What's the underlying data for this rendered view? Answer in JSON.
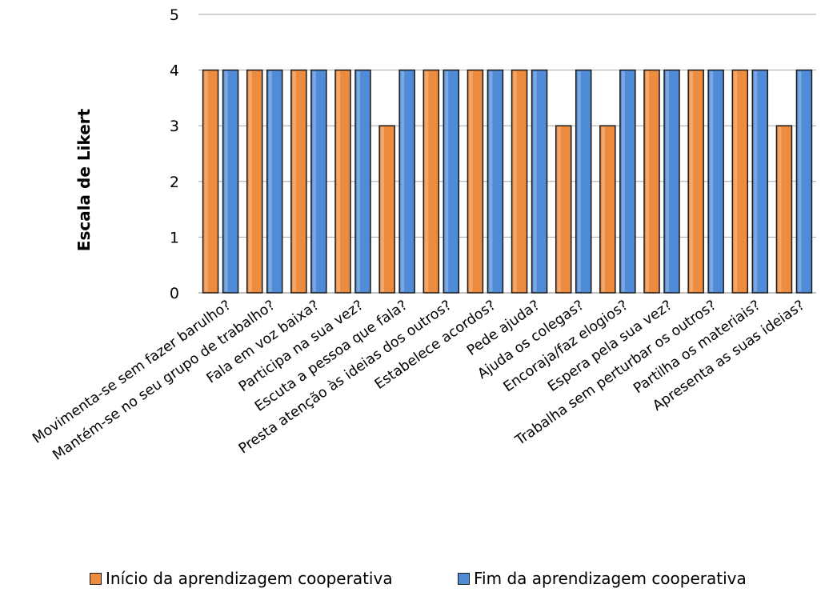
{
  "chart_data": {
    "type": "bar",
    "title": "",
    "xlabel": "",
    "ylabel": "Escala de Likert",
    "ylim": [
      0,
      5
    ],
    "yticks": [
      0,
      1,
      2,
      3,
      4,
      5
    ],
    "grid": "horizontal",
    "legend_position": "bottom",
    "categories": [
      "Movimenta-se sem fazer barulho?",
      "Mantém-se no seu grupo de trabalho?",
      "Fala em voz baixa?",
      "Participa na sua vez?",
      "Escuta a pessoa que fala?",
      "Presta atenção às ideias dos outros?",
      "Estabelece acordos?",
      "Pede ajuda?",
      "Ajuda os colegas?",
      "Encoraja/faz elogios?",
      "Espera pela sua vez?",
      "Trabalha sem perturbar os outros?",
      "Partilha os materiais?",
      "Apresenta as suas ideias?"
    ],
    "series": [
      {
        "name": "Início da aprendizagem cooperativa",
        "color": "#ED8B3F",
        "values": [
          4,
          4,
          4,
          4,
          3,
          4,
          4,
          4,
          3,
          3,
          4,
          4,
          4,
          3
        ]
      },
      {
        "name": "Fim da aprendizagem cooperativa",
        "color": "#4F8BD6",
        "values": [
          4,
          4,
          4,
          4,
          4,
          4,
          4,
          4,
          4,
          4,
          4,
          4,
          4,
          4
        ]
      }
    ]
  }
}
